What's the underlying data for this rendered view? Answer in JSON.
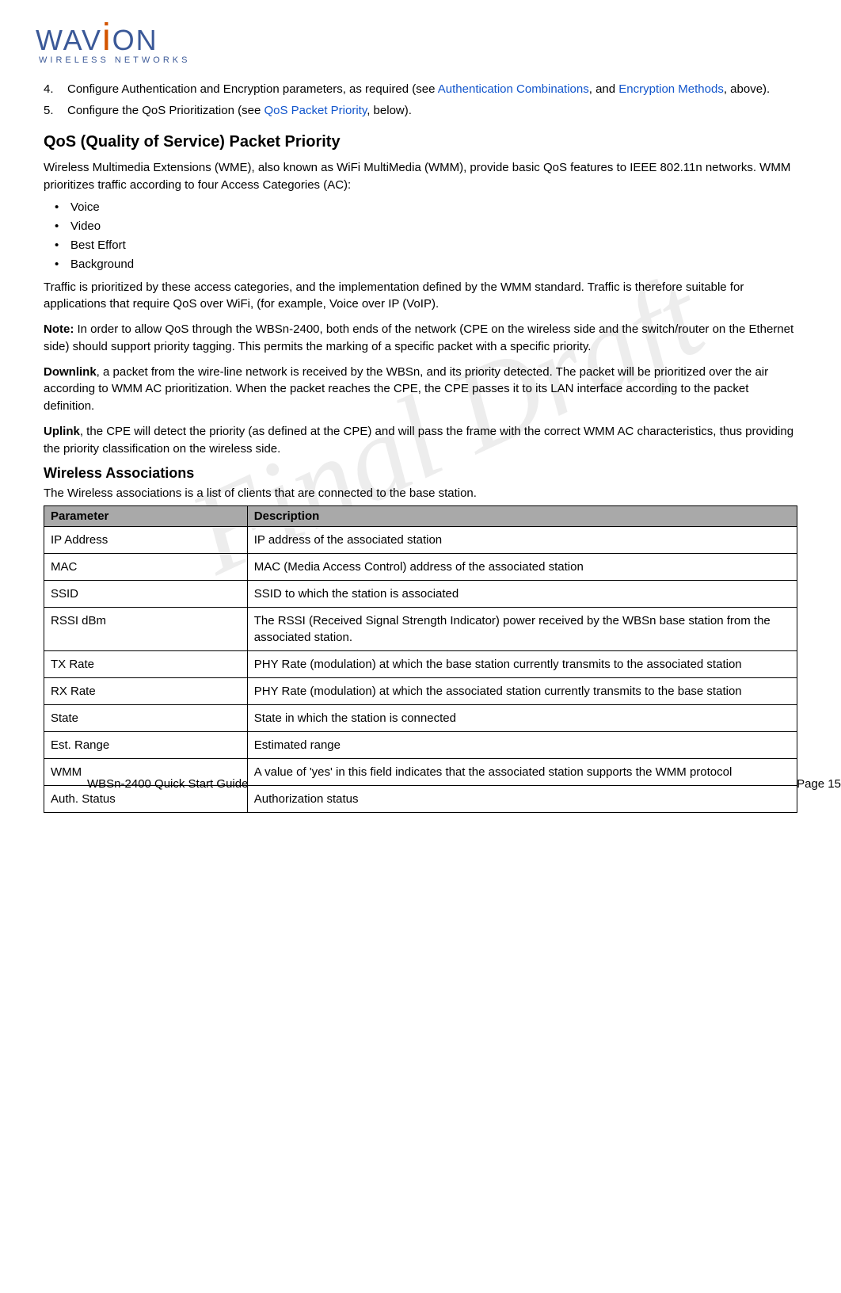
{
  "logo": {
    "brand_prefix": "WAV",
    "brand_suffix": "ON",
    "subtitle": "WIRELESS NETWORKS"
  },
  "watermark": "Final Draft",
  "list_items": {
    "item4_num": "4.",
    "item4_text_a": "Configure Authentication and Encryption parameters, as required (see ",
    "item4_link1": "Authentication Combinations",
    "item4_text_b": ", and ",
    "item4_link2": "Encryption Methods",
    "item4_text_c": ", above).",
    "item5_num": "5.",
    "item5_text_a": "Configure the QoS Prioritization (see ",
    "item5_link1": "QoS Packet Priority",
    "item5_text_b": ", below)."
  },
  "qos": {
    "heading": "QoS (Quality of Service) Packet Priority",
    "intro": "Wireless Multimedia Extensions (WME), also known as WiFi MultiMedia (WMM), provide basic QoS features to IEEE 802.11n networks. WMM prioritizes traffic according to four Access Categories (AC):",
    "bullets": [
      "Voice",
      "Video",
      "Best Effort",
      "Background"
    ],
    "para2": "Traffic is prioritized by these access categories, and the implementation defined by the WMM standard. Traffic is therefore suitable for applications that require QoS over WiFi, (for example, Voice over IP (VoIP).",
    "note_label": "Note:",
    "note_text": " In order to allow QoS through the WBSn-2400, both ends of the network (CPE on the wireless side and the switch/router on the Ethernet side) should support priority tagging. This permits the marking of a specific packet with a specific priority.",
    "downlink_label": "Downlink",
    "downlink_text": ", a packet from the wire-line network is received by the WBSn, and its priority detected. The packet will be prioritized over the air according to WMM AC prioritization. When the packet reaches the CPE, the CPE passes it to its LAN interface according to the packet definition.",
    "uplink_label": "Uplink",
    "uplink_text": ", the CPE will detect the priority (as defined at the CPE) and will pass the frame with the correct WMM AC characteristics, thus providing the priority classification on the wireless side."
  },
  "assoc": {
    "heading": "Wireless Associations",
    "intro": "The Wireless associations is a list of clients that are connected to the base station.",
    "table": {
      "header_param": "Parameter",
      "header_desc": "Description",
      "rows": [
        {
          "p": "IP Address",
          "d": "IP address of the associated station"
        },
        {
          "p": "MAC",
          "d": "MAC (Media Access Control) address of the associated station"
        },
        {
          "p": "SSID",
          "d": "SSID to which the station is associated"
        },
        {
          "p": "RSSI dBm",
          "d": "The RSSI (Received Signal Strength Indicator) power received by the WBSn base station from the associated station."
        },
        {
          "p": "TX Rate",
          "d": "PHY Rate (modulation) at which the base station currently transmits to the associated station"
        },
        {
          "p": "RX Rate",
          "d": "PHY Rate (modulation) at which the associated station currently transmits to the base station"
        },
        {
          "p": "State",
          "d": "State in which the station is connected"
        },
        {
          "p": "Est. Range",
          "d": "Estimated range"
        },
        {
          "p": "WMM",
          "d": "A value of 'yes' in this field indicates that the associated station supports the WMM protocol"
        },
        {
          "p": "Auth. Status",
          "d": "Authorization status"
        }
      ]
    }
  },
  "footer": {
    "left": "WBSn-2400 Quick Start Guide",
    "right": "Page 15"
  }
}
